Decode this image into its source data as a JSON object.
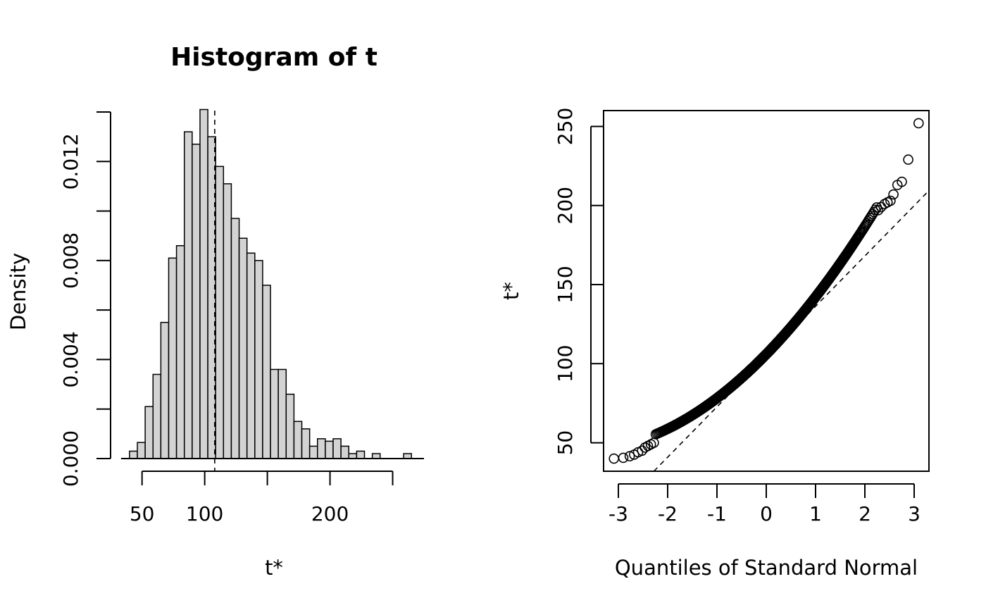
{
  "chart_data": [
    {
      "type": "bar",
      "subtype": "histogram",
      "title": "Histogram of t",
      "xlabel": "t*",
      "ylabel": "Density",
      "xlim": [
        35,
        275
      ],
      "ylim": [
        0,
        0.014
      ],
      "x_ticks": [
        50,
        100,
        150,
        200,
        250
      ],
      "x_tick_labels": [
        "50",
        "100",
        "",
        "200",
        ""
      ],
      "y_ticks": [
        0,
        0.002,
        0.004,
        0.006,
        0.008,
        0.01,
        0.012,
        0.014
      ],
      "y_tick_labels": [
        "0.000",
        "",
        "0.004",
        "",
        "0.008",
        "",
        "0.012",
        ""
      ],
      "bin_width": 6.25,
      "bin_start": 40,
      "densities": [
        0.0003,
        0.00065,
        0.0021,
        0.0034,
        0.0055,
        0.0081,
        0.0086,
        0.0132,
        0.0127,
        0.0141,
        0.013,
        0.0118,
        0.0111,
        0.0097,
        0.0089,
        0.0083,
        0.008,
        0.007,
        0.0036,
        0.0036,
        0.0026,
        0.0015,
        0.0012,
        0.0005,
        0.0008,
        0.0007,
        0.0008,
        0.0005,
        0.0002,
        0.0003,
        0,
        0.0002,
        0,
        0,
        0,
        0.0002
      ],
      "reference_line_x": 108,
      "reference_line_style": "dashed",
      "grid": false,
      "legend": "none"
    },
    {
      "type": "scatter",
      "subtype": "normal-qq",
      "title": "",
      "xlabel": "Quantiles of Standard Normal",
      "ylabel": "t*",
      "xlim": [
        -3.3,
        3.3
      ],
      "ylim": [
        32,
        260
      ],
      "x_ticks": [
        -3,
        -2,
        -1,
        0,
        1,
        2,
        3
      ],
      "x_tick_labels": [
        "-3",
        "-2",
        "-1",
        "0",
        "1",
        "2",
        "3"
      ],
      "y_ticks": [
        50,
        100,
        150,
        200,
        250
      ],
      "y_tick_labels": [
        "50",
        "100",
        "150",
        "200",
        "250"
      ],
      "n_points": 999,
      "mean": 108,
      "sd": 32,
      "reference_line": {
        "intercept": 104.5,
        "slope": 31.8,
        "style": "dashed"
      },
      "tail_points": [
        [
          -3.09,
          40
        ],
        [
          -2.9,
          40.5
        ],
        [
          -2.77,
          41.5
        ],
        [
          -2.68,
          42.5
        ],
        [
          -2.6,
          44
        ],
        [
          -2.52,
          45
        ],
        [
          -2.46,
          47
        ],
        [
          -2.4,
          48
        ],
        [
          -2.34,
          49
        ],
        [
          -2.28,
          50
        ],
        [
          2.27,
          197
        ],
        [
          2.33,
          199
        ],
        [
          2.4,
          201
        ],
        [
          2.46,
          202
        ],
        [
          2.52,
          203
        ],
        [
          2.58,
          207
        ],
        [
          2.66,
          213
        ],
        [
          2.75,
          215
        ],
        [
          2.88,
          229
        ],
        [
          3.09,
          252
        ]
      ],
      "grid": false,
      "legend": "none"
    }
  ]
}
